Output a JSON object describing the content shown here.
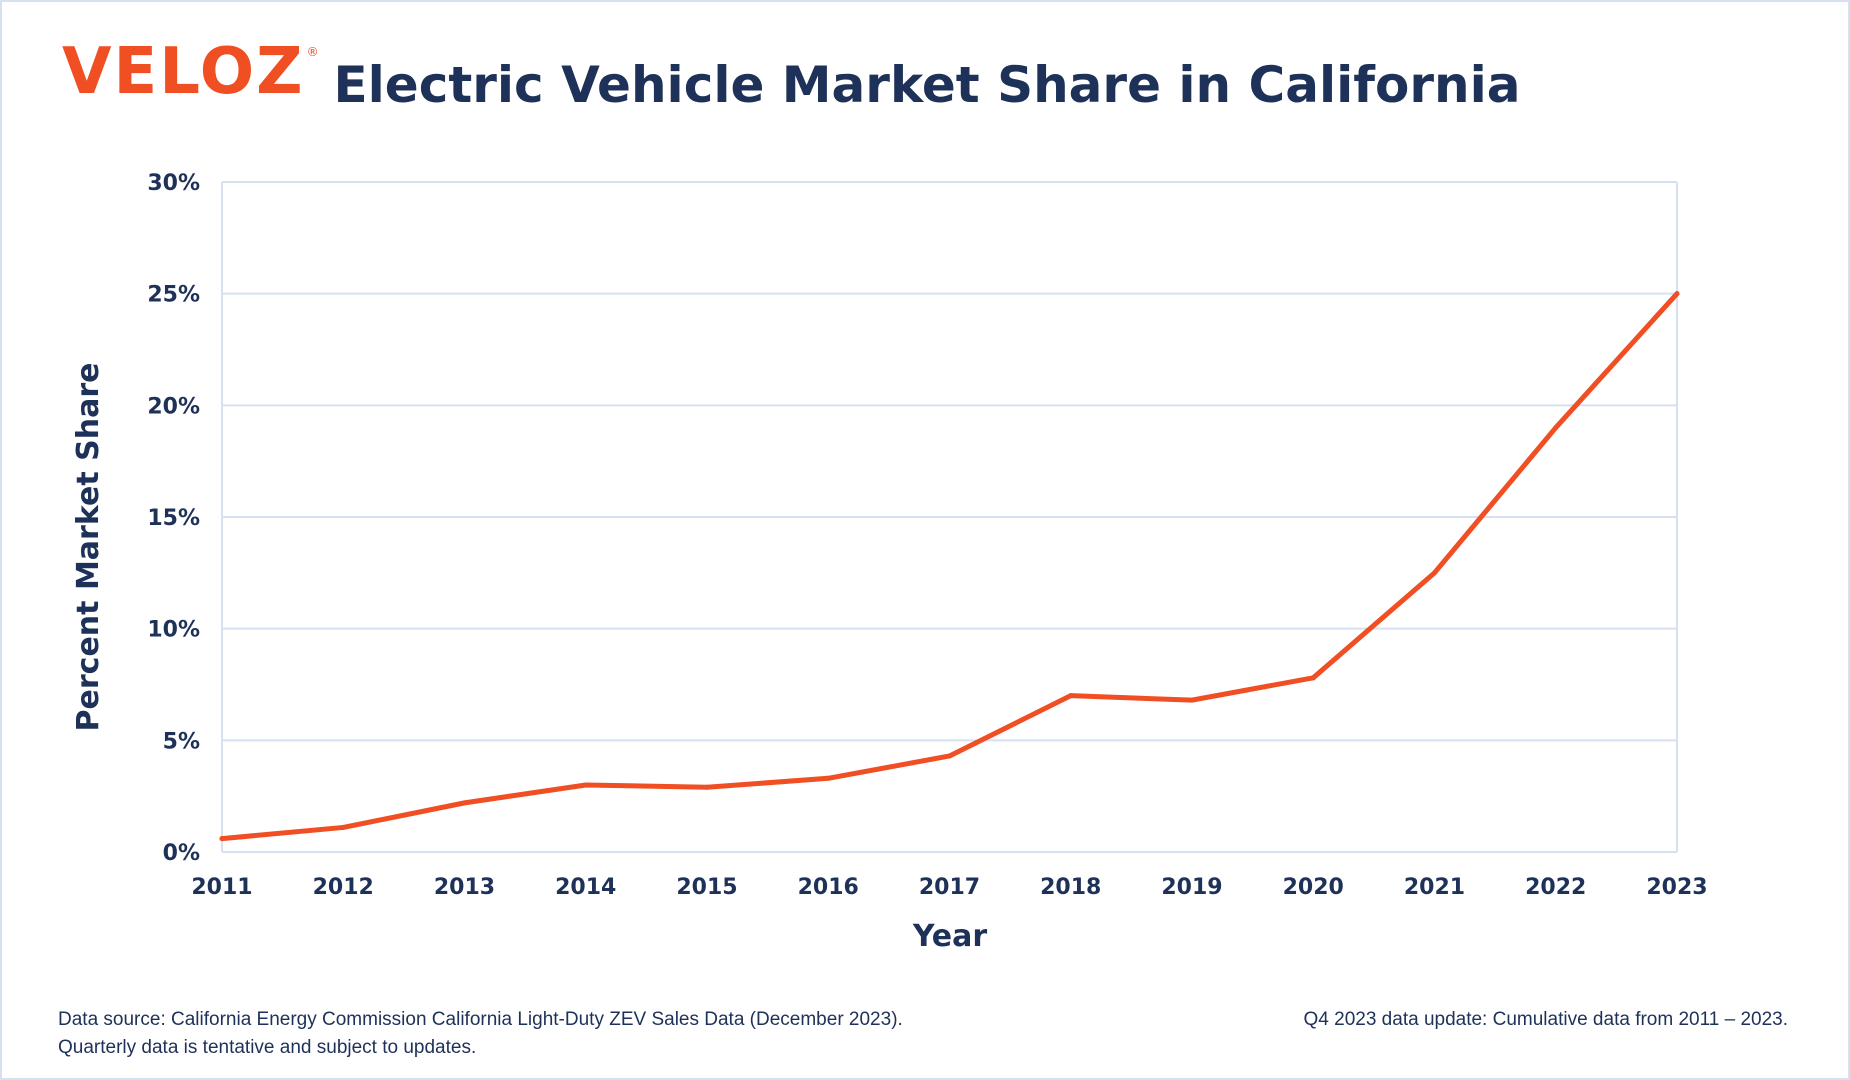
{
  "brand": {
    "logo_text": "VELOZ",
    "logo_mark": "®",
    "accent_color": "#f04e23"
  },
  "chart_data": {
    "type": "line",
    "title": "Electric Vehicle Market Share in California",
    "xlabel": "Year",
    "ylabel": "Percent Market Share",
    "x": [
      2011,
      2012,
      2013,
      2014,
      2015,
      2016,
      2017,
      2018,
      2019,
      2020,
      2021,
      2022,
      2023
    ],
    "x_tick_labels": [
      "2011",
      "2012",
      "2013",
      "2014",
      "2015",
      "2016",
      "2017",
      "2018",
      "2019",
      "2020",
      "2021",
      "2022",
      "2023"
    ],
    "series": [
      {
        "color": "#f04e23",
        "values": [
          0.6,
          1.1,
          2.2,
          3.0,
          2.9,
          3.3,
          4.3,
          7.0,
          6.8,
          7.8,
          12.5,
          19.0,
          25.0
        ]
      }
    ],
    "ylim": [
      0,
      30
    ],
    "y_ticks": [
      0,
      5,
      10,
      15,
      20,
      25,
      30
    ],
    "y_tick_labels": [
      "0%",
      "5%",
      "10%",
      "15%",
      "20%",
      "25%",
      "30%"
    ],
    "grid": "horizontal",
    "grid_color": "#d7e0f1",
    "text_color": "#1e3158"
  },
  "footer": {
    "source_line1": "Data source: California Energy Commission California Light-Duty ZEV Sales Data (December 2023).",
    "source_line2": "Quarterly data is tentative and subject to updates.",
    "update_note": "Q4 2023 data update: Cumulative data from 2011 – 2023."
  }
}
